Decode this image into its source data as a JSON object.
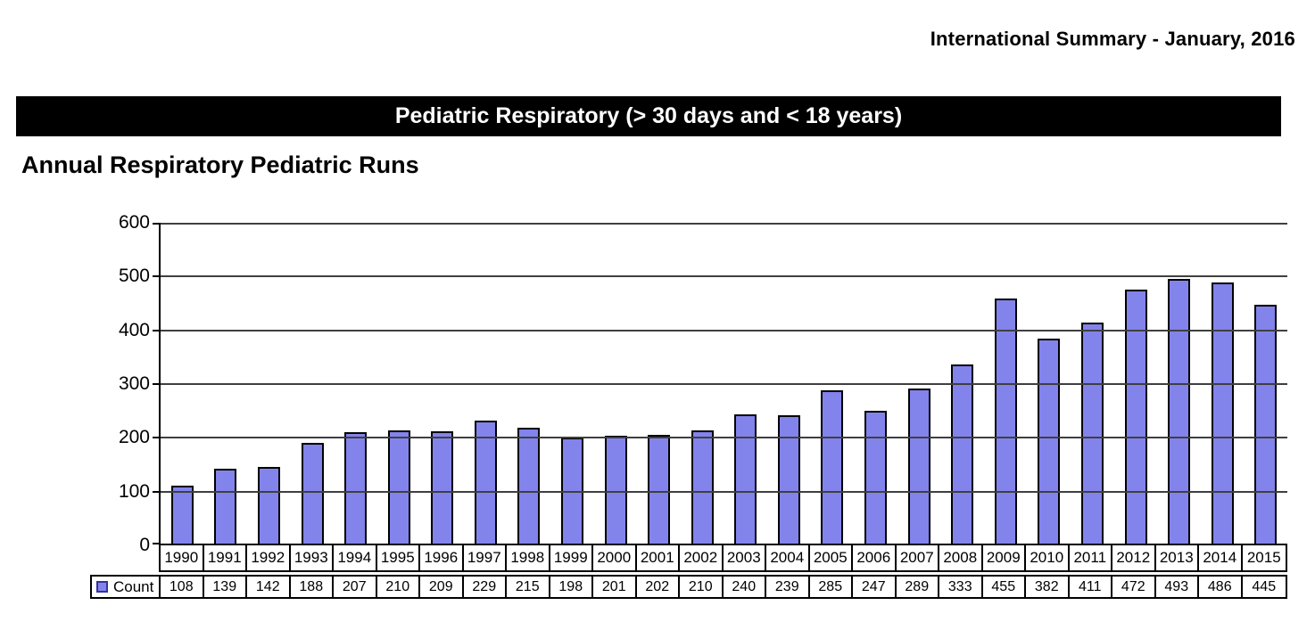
{
  "header": {
    "right_text": "International Summary - January, 2016"
  },
  "title_bar": {
    "text": "Pediatric Respiratory (> 30 days and < 18 years)"
  },
  "section_heading": "Annual Respiratory Pediatric Runs",
  "colors": {
    "bar_fill": "#8383ec",
    "bar_border": "#000000",
    "gridline": "#3f3f3f",
    "title_bar_bg": "#000000",
    "title_bar_text": "#ffffff"
  },
  "chart_data": {
    "type": "bar",
    "title": "Annual Respiratory Pediatric Runs",
    "categories": [
      "1990",
      "1991",
      "1992",
      "1993",
      "1994",
      "1995",
      "1996",
      "1997",
      "1998",
      "1999",
      "2000",
      "2001",
      "2002",
      "2003",
      "2004",
      "2005",
      "2006",
      "2007",
      "2008",
      "2009",
      "2010",
      "2011",
      "2012",
      "2013",
      "2014",
      "2015"
    ],
    "series": [
      {
        "name": "Count",
        "values": [
          108,
          139,
          142,
          188,
          207,
          210,
          209,
          229,
          215,
          198,
          201,
          202,
          210,
          240,
          239,
          285,
          247,
          289,
          333,
          455,
          382,
          411,
          472,
          493,
          486,
          445
        ]
      }
    ],
    "xlabel": "",
    "ylabel": "",
    "ylim": [
      0,
      600
    ],
    "yticks": [
      0,
      100,
      200,
      300,
      400,
      500,
      600
    ],
    "grid": true,
    "legend_position": "bottom-left",
    "data_table_shown": true
  }
}
